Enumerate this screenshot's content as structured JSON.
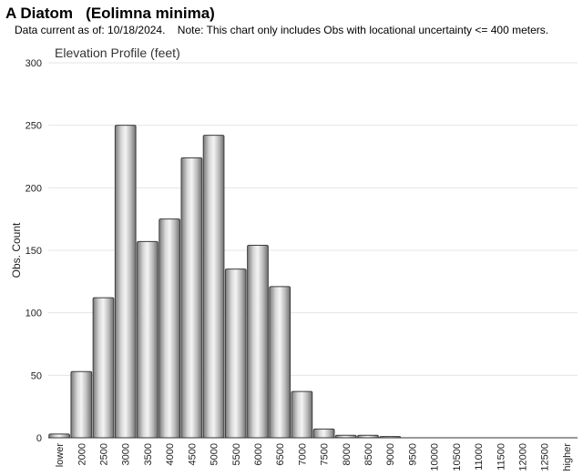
{
  "header": {
    "title": "A Diatom   (Eolimna minima)",
    "subtitle": "Data current as of: 10/18/2024.    Note: This chart only includes Obs with locational uncertainty <= 400 meters."
  },
  "chart_data": {
    "type": "bar",
    "title": "Elevation Profile (feet)",
    "xlabel": "",
    "ylabel": "Obs. Count",
    "ylim": [
      0,
      300
    ],
    "yticks": [
      0,
      50,
      100,
      150,
      200,
      250,
      300
    ],
    "grid": true,
    "categories": [
      "lower",
      "2000",
      "2500",
      "3000",
      "3500",
      "4000",
      "4500",
      "5000",
      "5500",
      "6000",
      "6500",
      "7000",
      "7500",
      "8000",
      "8500",
      "9000",
      "9500",
      "10000",
      "10500",
      "11000",
      "11500",
      "12000",
      "12500",
      "higher"
    ],
    "values": [
      3,
      53,
      112,
      250,
      157,
      175,
      224,
      242,
      135,
      154,
      121,
      37,
      7,
      2,
      2,
      1,
      0,
      0,
      0,
      0,
      0,
      0,
      0,
      0
    ]
  }
}
